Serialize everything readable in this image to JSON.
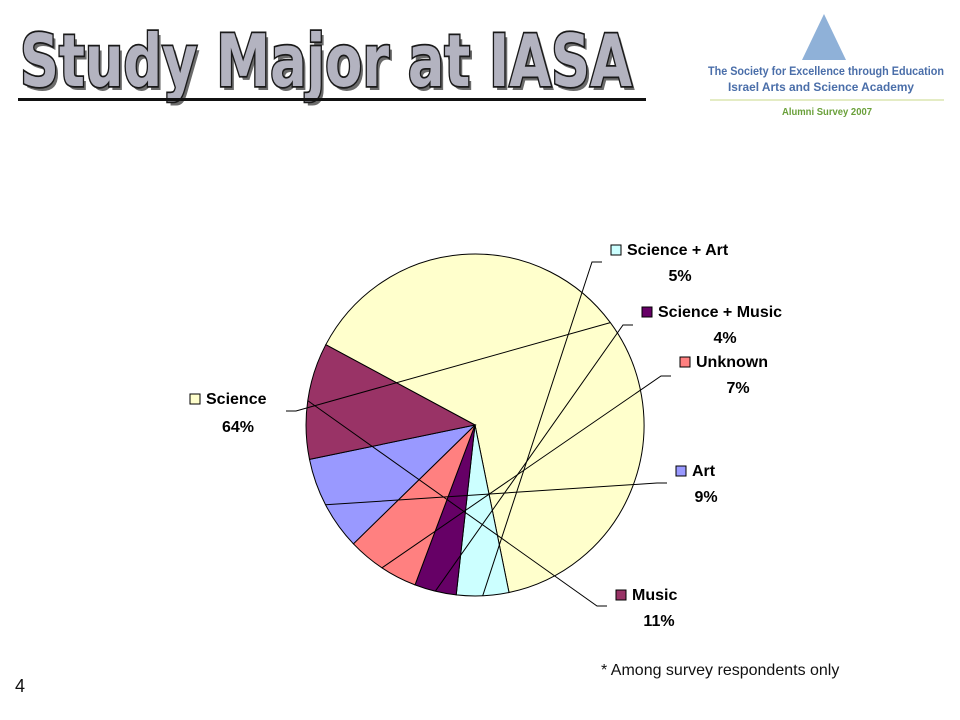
{
  "slide": {
    "title": "Study Major at IASA",
    "footnote": "* Among survey respondents only",
    "page_number": "4"
  },
  "logo": {
    "line1": "The Society for Excellence through Education",
    "line2": "Israel Arts and Science Academy",
    "line3": "Alumni Survey 2007",
    "colors": {
      "triangle": "#8fb1d8",
      "text_blue": "#4a6ea9",
      "text_green": "#6aa03a",
      "rule": "#c8d88a"
    }
  },
  "chart_data": {
    "type": "pie",
    "title": "",
    "slices": [
      {
        "label": "Science",
        "value": 64,
        "display": "64%",
        "color": "#ffffcc"
      },
      {
        "label": "Science + Art",
        "value": 5,
        "display": "5%",
        "color": "#ccffff"
      },
      {
        "label": "Science + Music",
        "value": 4,
        "display": "4%",
        "color": "#660066"
      },
      {
        "label": "Unknown",
        "value": 7,
        "display": "7%",
        "color": "#ff8080"
      },
      {
        "label": "Art",
        "value": 9,
        "display": "9%",
        "color": "#9999ff"
      },
      {
        "label": "Music",
        "value": 11,
        "display": "11%",
        "color": "#993366"
      }
    ]
  }
}
